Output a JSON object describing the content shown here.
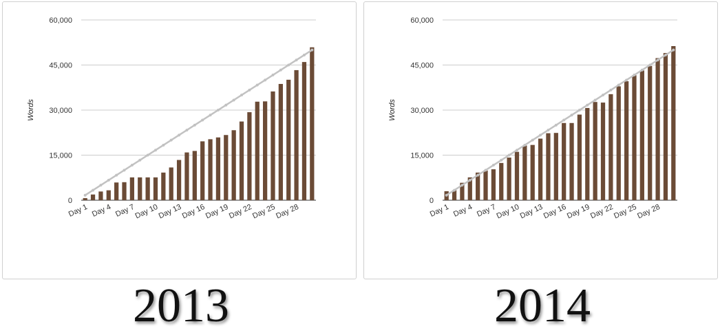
{
  "chart_data": [
    {
      "type": "bar",
      "title": "",
      "year_label": "2013",
      "ylabel": "Words",
      "xlabel": "",
      "ylim": [
        0,
        60000
      ],
      "yticks": [
        0,
        15000,
        30000,
        45000,
        60000
      ],
      "ytick_labels": [
        "0",
        "15,000",
        "30,000",
        "45,000",
        "60,000"
      ],
      "categories": [
        "Day 1",
        "Day 2",
        "Day 3",
        "Day 4",
        "Day 5",
        "Day 6",
        "Day 7",
        "Day 8",
        "Day 9",
        "Day 10",
        "Day 11",
        "Day 12",
        "Day 13",
        "Day 14",
        "Day 15",
        "Day 16",
        "Day 17",
        "Day 18",
        "Day 19",
        "Day 20",
        "Day 21",
        "Day 22",
        "Day 23",
        "Day 24",
        "Day 25",
        "Day 26",
        "Day 27",
        "Day 28",
        "Day 29",
        "Day 30"
      ],
      "x_tick_labels": [
        "Day 1",
        "Day 4",
        "Day 7",
        "Day 10",
        "Day 13",
        "Day 16",
        "Day 19",
        "Day 22",
        "Day 25",
        "Day 28"
      ],
      "values": [
        700,
        1900,
        2900,
        3300,
        5900,
        6000,
        7600,
        7600,
        7600,
        7600,
        9200,
        10900,
        13400,
        15900,
        16400,
        19600,
        20300,
        20900,
        21700,
        23300,
        26200,
        29300,
        32800,
        32900,
        36200,
        38700,
        40100,
        43300,
        46000,
        50900
      ],
      "target_line": {
        "start": 1667,
        "end": 50000
      },
      "grid": true,
      "legend": "none",
      "colors": {
        "bar": "#6b4b36",
        "target": "#c2c2c2"
      }
    },
    {
      "type": "bar",
      "title": "",
      "year_label": "2014",
      "ylabel": "Words",
      "xlabel": "",
      "ylim": [
        0,
        60000
      ],
      "yticks": [
        0,
        15000,
        30000,
        45000,
        60000
      ],
      "ytick_labels": [
        "0",
        "15,000",
        "30,000",
        "45,000",
        "60,000"
      ],
      "categories": [
        "Day 1",
        "Day 2",
        "Day 3",
        "Day 4",
        "Day 5",
        "Day 6",
        "Day 7",
        "Day 8",
        "Day 9",
        "Day 10",
        "Day 11",
        "Day 12",
        "Day 13",
        "Day 14",
        "Day 15",
        "Day 16",
        "Day 17",
        "Day 18",
        "Day 19",
        "Day 20",
        "Day 21",
        "Day 22",
        "Day 23",
        "Day 24",
        "Day 25",
        "Day 26",
        "Day 27",
        "Day 28",
        "Day 29",
        "Day 30"
      ],
      "x_tick_labels": [
        "Day 1",
        "Day 4",
        "Day 7",
        "Day 10",
        "Day 13",
        "Day 16",
        "Day 19",
        "Day 22",
        "Day 25",
        "Day 28"
      ],
      "values": [
        3000,
        3300,
        5800,
        7600,
        9200,
        9900,
        10300,
        12400,
        14200,
        16100,
        18200,
        18400,
        20500,
        22300,
        22400,
        25700,
        25700,
        28500,
        30700,
        32700,
        32500,
        35300,
        37900,
        39600,
        41600,
        43200,
        44700,
        47300,
        49000,
        51300
      ],
      "target_line": {
        "start": 1667,
        "end": 50000
      },
      "grid": true,
      "legend": "none",
      "colors": {
        "bar": "#6b4b36",
        "target": "#c2c2c2"
      }
    }
  ]
}
